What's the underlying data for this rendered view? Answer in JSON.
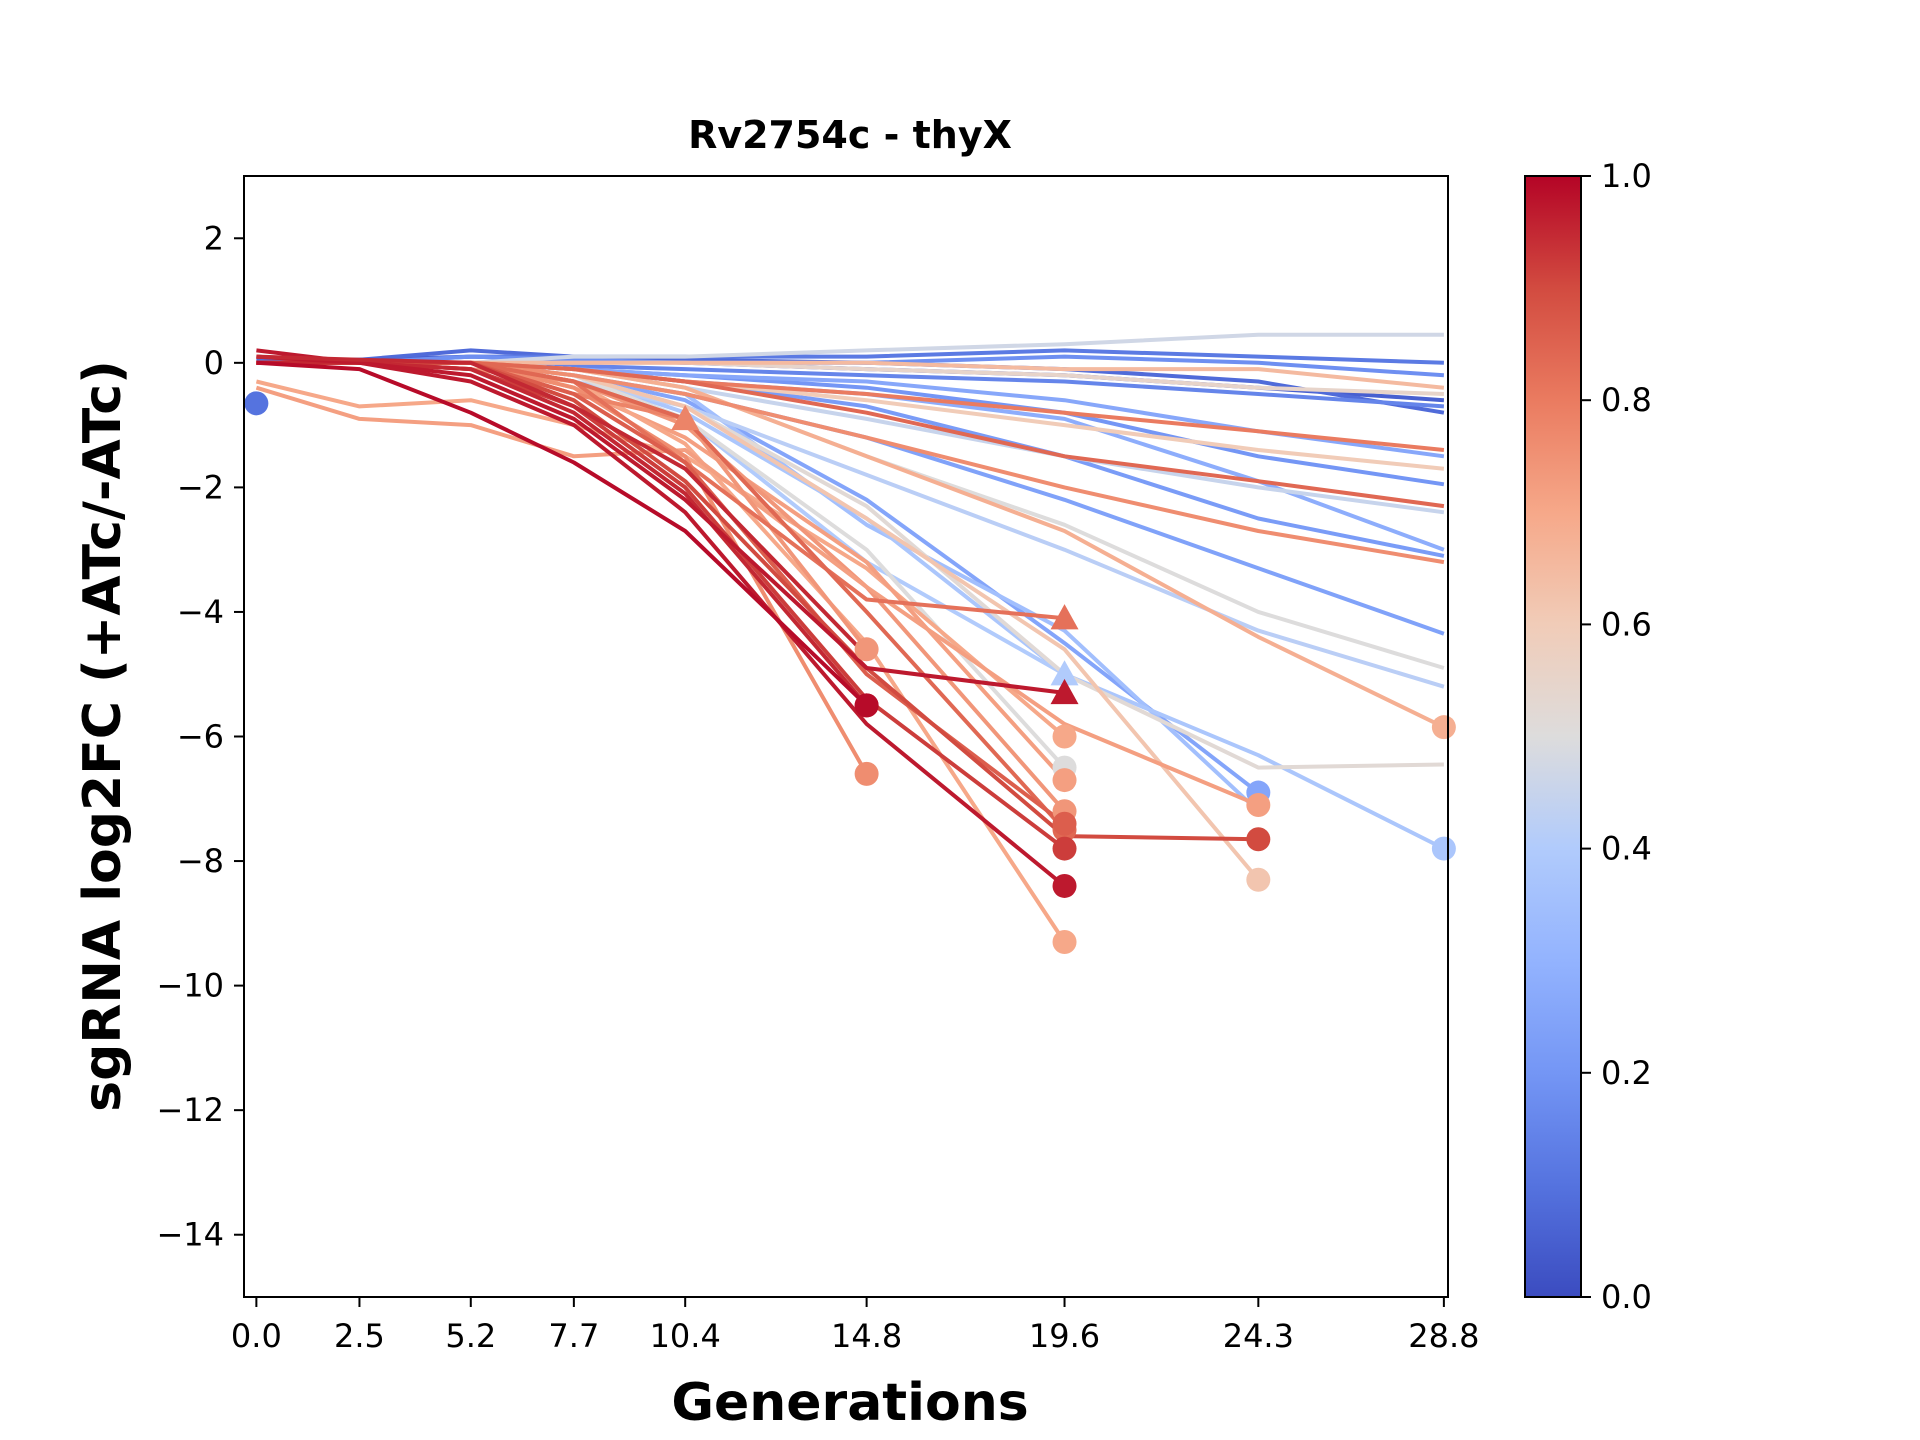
{
  "chart_data": {
    "type": "line",
    "title": "Rv2754c - thyX",
    "xlabel": "Generations",
    "ylabel": "sgRNA log2FC (+ATc/-ATc)",
    "x_ticks": [
      0.0,
      2.5,
      5.2,
      7.7,
      10.4,
      14.8,
      19.6,
      24.3,
      28.8
    ],
    "x_tick_labels": [
      "0.0",
      "2.5",
      "5.2",
      "7.7",
      "10.4",
      "14.8",
      "19.6",
      "24.3",
      "28.8"
    ],
    "xlim": [
      -0.3,
      28.9
    ],
    "y_ticks": [
      2,
      0,
      -2,
      -4,
      -6,
      -8,
      -10,
      -12,
      -14
    ],
    "y_tick_labels": [
      "2",
      "0",
      "−2",
      "−4",
      "−6",
      "−8",
      "−10",
      "−12",
      "−14"
    ],
    "ylim": [
      -15,
      3
    ],
    "grid": false,
    "colorbar": {
      "colormap": "coolwarm",
      "range": [
        0.0,
        1.0
      ],
      "ticks": [
        0.0,
        0.2,
        0.4,
        0.6,
        0.8,
        1.0
      ],
      "tick_labels": [
        "0.0",
        "0.2",
        "0.4",
        "0.6",
        "0.8",
        "1.0"
      ]
    },
    "series": [
      {
        "c": 0.05,
        "y": [
          0.0,
          0.05,
          0.1,
          0.05,
          0.0,
          -0.1,
          -0.2,
          -0.4,
          -0.6
        ],
        "end": "none"
      },
      {
        "c": 0.08,
        "y": [
          0.05,
          0.05,
          0.2,
          0.1,
          0.05,
          0.0,
          -0.1,
          -0.3,
          -0.8
        ],
        "end": "none"
      },
      {
        "c": 0.12,
        "y": [
          0.0,
          0.0,
          0.1,
          0.1,
          0.1,
          0.1,
          0.2,
          0.1,
          0.0
        ],
        "end": "none"
      },
      {
        "c": 0.15,
        "y": [
          0.0,
          0.0,
          0.0,
          -0.05,
          -0.1,
          -0.2,
          -0.3,
          -0.5,
          -0.7
        ],
        "end": "none"
      },
      {
        "c": 0.18,
        "y": [
          0.0,
          0.0,
          0.1,
          0.05,
          0.0,
          0.0,
          0.1,
          0.0,
          -0.2
        ],
        "end": "none"
      },
      {
        "c": 0.2,
        "y": [
          0.0,
          0.0,
          0.0,
          -0.1,
          -0.2,
          -0.4,
          -0.8,
          -1.5,
          -1.95
        ],
        "end": "none"
      },
      {
        "c": 0.22,
        "y": [
          0.0,
          0.0,
          0.0,
          -0.1,
          -0.3,
          -0.7,
          -1.5,
          -2.5,
          -3.1
        ],
        "end": "none"
      },
      {
        "c": 0.24,
        "y": [
          0.0,
          0.0,
          0.0,
          -0.2,
          -0.5,
          -1.2,
          -2.2,
          -3.3,
          -4.35
        ],
        "end": "none"
      },
      {
        "c": 0.26,
        "y": [
          0.0,
          0.0,
          0.0,
          -0.1,
          -0.2,
          -0.3,
          -0.6,
          -1.1,
          -1.5
        ],
        "end": "none"
      },
      {
        "c": 0.28,
        "y": [
          0.0,
          0.0,
          0.0,
          -0.1,
          -0.3,
          -0.5,
          -0.9,
          -1.9,
          -3.0
        ],
        "end": "none"
      },
      {
        "c": 0.25,
        "y": [
          0.0,
          0.0,
          0.0,
          -0.2,
          -0.6,
          -2.2,
          -4.5,
          -6.9
        ],
        "end": "circle"
      },
      {
        "c": 0.35,
        "y": [
          0.0,
          0.0,
          0.0,
          -0.2,
          -0.5,
          -2.6,
          -4.3,
          -7.2
        ],
        "end": "none"
      },
      {
        "c": 0.38,
        "y": [
          0.0,
          0.0,
          0.0,
          -0.2,
          -0.8,
          -2.5,
          -5.0,
          -6.3,
          -7.8
        ],
        "end": "circle"
      },
      {
        "c": 0.4,
        "y": [
          0.0,
          0.0,
          0.0,
          -0.2,
          -0.9,
          -3.2,
          -5.0
        ],
        "end": "triangle"
      },
      {
        "c": 0.42,
        "y": [
          0.0,
          0.0,
          0.0,
          -0.3,
          -0.7,
          -1.8,
          -3.0,
          -4.3,
          -5.2
        ],
        "end": "none"
      },
      {
        "c": 0.45,
        "y": [
          0.0,
          0.0,
          0.0,
          -0.1,
          -0.4,
          -0.9,
          -1.5,
          -2.0,
          -2.4
        ],
        "end": "none"
      },
      {
        "c": 0.47,
        "y": [
          0.0,
          0.0,
          0.0,
          0.1,
          0.1,
          0.2,
          0.3,
          0.45,
          0.45
        ],
        "end": "none"
      },
      {
        "c": 0.5,
        "y": [
          0.0,
          0.0,
          0.0,
          -0.1,
          -0.4,
          -1.5,
          -2.6,
          -4.0,
          -4.9
        ],
        "end": "none"
      },
      {
        "c": 0.52,
        "y": [
          0.0,
          0.0,
          0.0,
          -0.2,
          -0.7,
          -2.3,
          -5.0,
          -6.5,
          -6.45
        ],
        "end": "none"
      },
      {
        "c": 0.5,
        "y": [
          0.0,
          0.0,
          0.0,
          -0.2,
          -0.9,
          -3.0,
          -6.5
        ],
        "end": "circle"
      },
      {
        "c": 0.55,
        "y": [
          0.0,
          0.0,
          0.0,
          0.0,
          0.0,
          -0.1,
          -0.2,
          -0.4,
          -0.5
        ],
        "end": "none"
      },
      {
        "c": 0.6,
        "y": [
          0.0,
          0.0,
          0.0,
          -0.1,
          -0.3,
          -0.6,
          -1.0,
          -1.4,
          -1.7
        ],
        "end": "none"
      },
      {
        "c": 0.62,
        "y": [
          0.0,
          0.0,
          0.0,
          -0.2,
          -0.7,
          -2.5,
          -4.6,
          -8.3
        ],
        "end": "circle"
      },
      {
        "c": 0.65,
        "y": [
          0.0,
          0.0,
          0.0,
          0.0,
          0.0,
          0.0,
          -0.1,
          -0.1,
          -0.4
        ],
        "end": "none"
      },
      {
        "c": 0.68,
        "y": [
          0.0,
          0.0,
          0.0,
          -0.1,
          -0.4,
          -1.5,
          -2.7,
          -4.4,
          -5.85
        ],
        "end": "circle"
      },
      {
        "c": 0.7,
        "y": [
          -0.3,
          -0.7,
          -0.6,
          -1.0,
          -1.5,
          -3.3,
          -6.0
        ],
        "end": "circle"
      },
      {
        "c": 0.72,
        "y": [
          0.0,
          0.0,
          0.0,
          -0.4,
          -1.2,
          -3.2,
          -6.7
        ],
        "end": "circle"
      },
      {
        "c": 0.74,
        "y": [
          0.0,
          0.0,
          0.0,
          -0.3,
          -1.0,
          -3.6,
          -7.2
        ],
        "end": "circle"
      },
      {
        "c": 0.7,
        "y": [
          0.0,
          0.0,
          0.0,
          -0.3,
          -1.3,
          -4.5,
          -9.3
        ],
        "end": "circle"
      },
      {
        "c": 0.72,
        "y": [
          -0.4,
          -0.9,
          -1.0,
          -1.5,
          -1.4,
          -3.6,
          -5.8,
          -7.1
        ],
        "end": "circle"
      },
      {
        "c": 0.74,
        "y": [
          0.0,
          0.0,
          -0.1,
          -0.3,
          -0.9,
          -4.6
        ],
        "end": "circle"
      },
      {
        "c": 0.76,
        "y": [
          0.0,
          0.0,
          0.0,
          -0.4,
          -1.5,
          -6.6
        ],
        "end": "circle"
      },
      {
        "c": 0.78,
        "y": [
          0.0,
          0.0,
          0.0,
          -0.5,
          -0.9
        ],
        "end": "triangle"
      },
      {
        "c": 0.76,
        "y": [
          0.0,
          0.0,
          0.0,
          -0.2,
          -0.5,
          -1.2,
          -2.0,
          -2.7,
          -3.2
        ],
        "end": "none"
      },
      {
        "c": 0.8,
        "y": [
          0.0,
          0.0,
          0.0,
          -0.1,
          -0.3,
          -0.5,
          -0.8,
          -1.1,
          -1.4
        ],
        "end": "none"
      },
      {
        "c": 0.82,
        "y": [
          0.0,
          0.0,
          0.0,
          -0.3,
          -1.6,
          -3.8,
          -4.1
        ],
        "end": "triangle"
      },
      {
        "c": 0.84,
        "y": [
          0.0,
          0.0,
          0.0,
          -0.3,
          -0.9,
          -4.0,
          -7.5
        ],
        "end": "circle"
      },
      {
        "c": 0.84,
        "y": [
          0.0,
          0.0,
          0.0,
          -0.1,
          -0.3,
          -0.8,
          -1.5,
          -1.9,
          -2.3
        ],
        "end": "none"
      },
      {
        "c": 0.86,
        "y": [
          0.0,
          0.0,
          0.0,
          -0.5,
          -1.6,
          -5.0,
          -7.4
        ],
        "end": "circle"
      },
      {
        "c": 0.9,
        "y": [
          0.0,
          0.0,
          0.0,
          -0.6,
          -1.9,
          -4.9,
          -7.6,
          -7.65
        ],
        "end": "circle"
      },
      {
        "c": 0.92,
        "y": [
          0.1,
          0.0,
          -0.1,
          -0.7,
          -2.0,
          -5.4,
          -7.8
        ],
        "end": "circle"
      },
      {
        "c": 0.95,
        "y": [
          0.0,
          0.0,
          -0.1,
          -0.8,
          -2.1,
          -5.5
        ],
        "end": "circle"
      },
      {
        "c": 0.97,
        "y": [
          0.2,
          0.0,
          -0.2,
          -0.9,
          -2.2,
          -4.9,
          -5.3
        ],
        "end": "triangle"
      },
      {
        "c": 0.97,
        "y": [
          0.1,
          0.0,
          -0.3,
          -1.0,
          -2.4,
          -5.8,
          -8.4
        ],
        "end": "circle"
      },
      {
        "c": 0.99,
        "y": [
          0.0,
          -0.1,
          -0.8,
          -1.6,
          -2.7,
          -5.5
        ],
        "end": "circle"
      },
      {
        "c": 0.95,
        "y": [
          0.1,
          0.05,
          0.0,
          -0.7,
          -1.7,
          -4.7
        ],
        "end": "none"
      },
      {
        "c": 0.1,
        "y": [
          -0.65
        ],
        "end": "circle"
      }
    ]
  }
}
